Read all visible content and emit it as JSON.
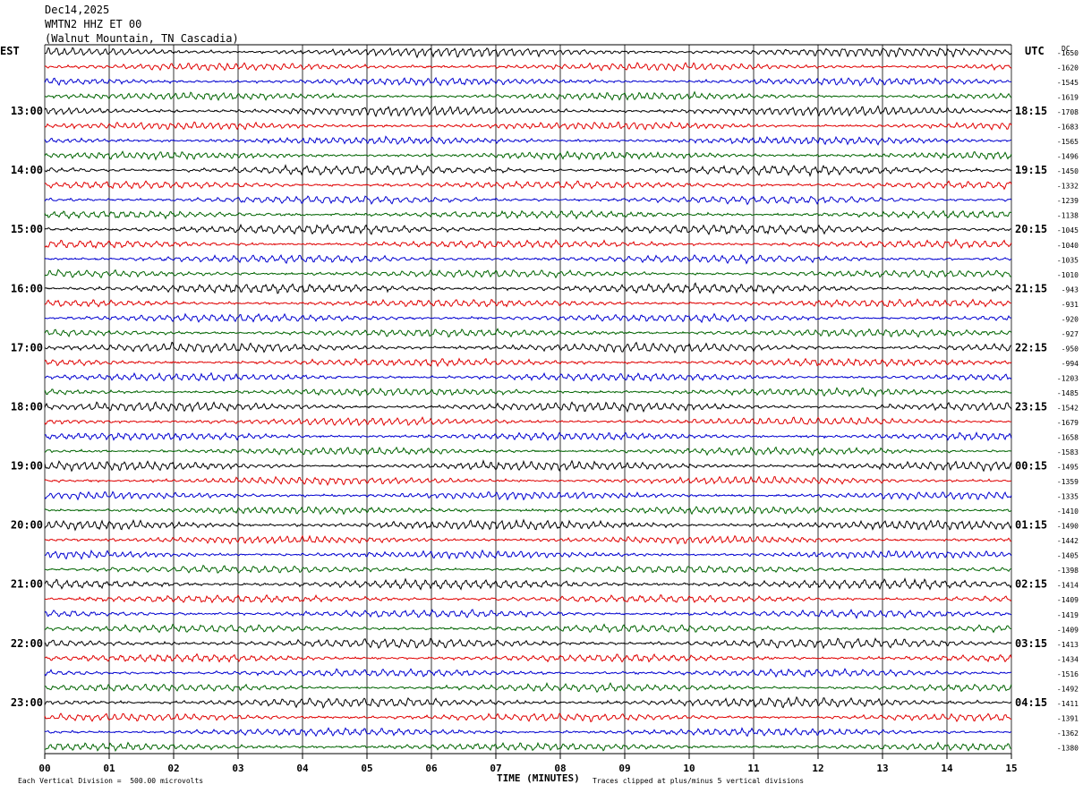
{
  "header": {
    "date": "Dec14,2025",
    "station": "WMTN2 HHZ ET 00",
    "location": "(Walnut Mountain, TN Cascadia)"
  },
  "axis_labels": {
    "left_zone": "EST",
    "right_zone": "UTC",
    "dc_header": "DC",
    "xlabel": "TIME (MINUTES)"
  },
  "footer": {
    "scale_note": "Each Vertical Division =  500.00 microvolts",
    "clip_note": "Traces clipped at plus/minus 5 vertical divisions"
  },
  "chart_data": {
    "type": "line",
    "title": "WMTN2 HHZ ET 00 (Walnut Mountain, TN Cascadia)",
    "xlabel": "TIME (MINUTES)",
    "xlim": [
      0,
      15
    ],
    "x_ticks": [
      "00",
      "01",
      "02",
      "03",
      "04",
      "05",
      "06",
      "07",
      "08",
      "09",
      "10",
      "11",
      "12",
      "13",
      "14",
      "15"
    ],
    "est_hours": [
      "13:00",
      "14:00",
      "15:00",
      "16:00",
      "17:00",
      "18:00",
      "19:00",
      "20:00",
      "21:00",
      "22:00",
      "23:00"
    ],
    "utc_hours": [
      "18:15",
      "19:15",
      "20:15",
      "21:15",
      "22:15",
      "23:15",
      "00:15",
      "01:15",
      "02:15",
      "03:15",
      "04:15"
    ],
    "dc_offsets": [
      -1650,
      -1620,
      -1545,
      -1619,
      -1708,
      -1683,
      -1565,
      -1496,
      -1450,
      -1332,
      -1239,
      -1138,
      -1045,
      -1040,
      -1035,
      -1010,
      -943,
      -931,
      -920,
      -927,
      -950,
      -994,
      -1203,
      -1485,
      -1542,
      -1679,
      -1658,
      -1583,
      -1495,
      -1359,
      -1335,
      -1410,
      -1490,
      -1442,
      -1405,
      -1398,
      -1414,
      -1409,
      -1419,
      -1409,
      -1413,
      -1434,
      -1516,
      -1492,
      -1411,
      -1391,
      -1362,
      -1380
    ],
    "trace_colors": [
      "#000000",
      "#e00000",
      "#0000d0",
      "#006400"
    ],
    "traces_per_hour": 4,
    "trace_count": 48
  }
}
